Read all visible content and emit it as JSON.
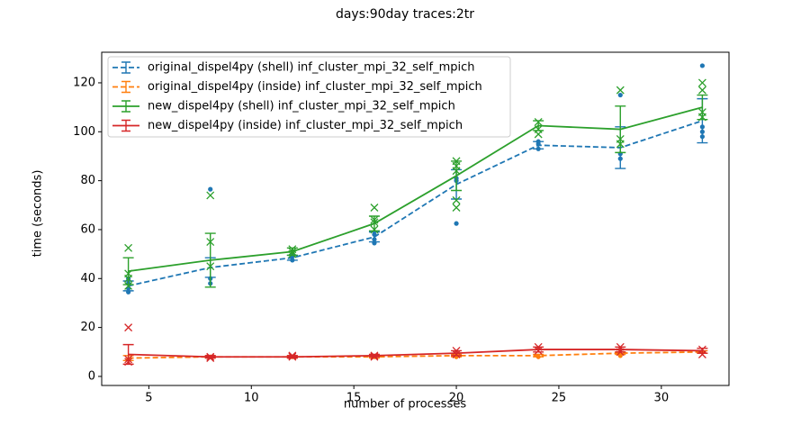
{
  "chart_data": {
    "type": "errorbar_line",
    "title": "days:90day traces:2tr",
    "xlabel": "number of processes",
    "ylabel": "time (seconds)",
    "x": [
      4,
      8,
      12,
      16,
      20,
      24,
      28,
      32
    ],
    "xlim": [
      2.7,
      33.3
    ],
    "ylim": [
      -3.7,
      132.5
    ],
    "xticks": [
      5,
      10,
      15,
      20,
      25,
      30
    ],
    "yticks": [
      0,
      20,
      40,
      60,
      80,
      100,
      120
    ],
    "legend": "upper left",
    "series": [
      {
        "name": "original_dispel4py (shell) inf_cluster_mpi_32_self_mpich",
        "color": "#1f77b4",
        "linestyle": "dashed",
        "marker": "dot",
        "values": [
          37,
          44.5,
          48.5,
          57,
          78.5,
          94.5,
          93.5,
          104.5
        ],
        "errors": [
          2,
          4,
          1,
          2,
          6,
          1.5,
          8.5,
          9
        ],
        "samples_x": [
          4,
          4,
          4,
          4,
          8,
          8,
          8,
          12,
          12,
          12,
          16,
          16,
          16,
          20,
          20,
          20,
          24,
          24,
          24,
          28,
          28,
          28,
          32,
          32,
          32,
          32
        ],
        "samples_y": [
          34.5,
          36,
          38,
          40,
          76.5,
          38,
          40,
          47.5,
          49,
          50,
          54.5,
          56,
          58,
          62.5,
          80,
          81,
          93,
          95,
          96,
          115,
          89,
          91,
          127,
          98,
          100,
          102
        ]
      },
      {
        "name": "original_dispel4py (inside) inf_cluster_mpi_32_self_mpich",
        "color": "#ff7f0e",
        "linestyle": "dashed",
        "marker": "dot",
        "values": [
          7.5,
          8,
          8,
          8,
          8.5,
          8.5,
          9.5,
          10
        ],
        "errors": [
          1,
          0.5,
          0.5,
          0.5,
          0.5,
          0.5,
          0.5,
          0.5
        ],
        "samples_x": [
          4,
          8,
          12,
          16,
          20,
          24,
          28,
          32
        ],
        "samples_y": [
          7,
          8,
          8,
          8,
          8,
          8,
          8.5,
          10
        ]
      },
      {
        "name": "new_dispel4py (shell) inf_cluster_mpi_32_self_mpich",
        "color": "#2ca02c",
        "linestyle": "solid",
        "marker": "x",
        "values": [
          43,
          47.5,
          51,
          62.5,
          82,
          102.5,
          101,
          110
        ],
        "errors": [
          5.5,
          11,
          1.5,
          3,
          6,
          2,
          9.5,
          5
        ],
        "samples_x": [
          4,
          4,
          4,
          4,
          8,
          8,
          8,
          12,
          12,
          12,
          16,
          16,
          16,
          16,
          20,
          20,
          20,
          20,
          20,
          24,
          24,
          24,
          28,
          28,
          28,
          32,
          32,
          32,
          32
        ],
        "samples_y": [
          52.5,
          37,
          40,
          42,
          74,
          55,
          45,
          50,
          51,
          52,
          69,
          60,
          63,
          64,
          88,
          86,
          69,
          72,
          84,
          104,
          101,
          99,
          117,
          97,
          95,
          120,
          117,
          108,
          106
        ]
      },
      {
        "name": "new_dispel4py (inside) inf_cluster_mpi_32_self_mpich",
        "color": "#d62728",
        "linestyle": "solid",
        "marker": "x",
        "values": [
          9,
          8,
          8,
          8.5,
          9.5,
          11,
          11,
          10.5
        ],
        "errors": [
          4,
          0.5,
          0.5,
          0.5,
          1,
          1,
          1,
          1
        ],
        "samples_x": [
          4,
          4,
          4,
          8,
          8,
          12,
          12,
          16,
          16,
          20,
          20,
          24,
          24,
          28,
          28,
          32,
          32
        ],
        "samples_y": [
          20,
          7,
          6,
          8,
          7.5,
          8,
          8.5,
          8.5,
          8,
          10.5,
          9,
          12,
          10.5,
          12,
          10,
          11,
          9
        ]
      }
    ]
  }
}
